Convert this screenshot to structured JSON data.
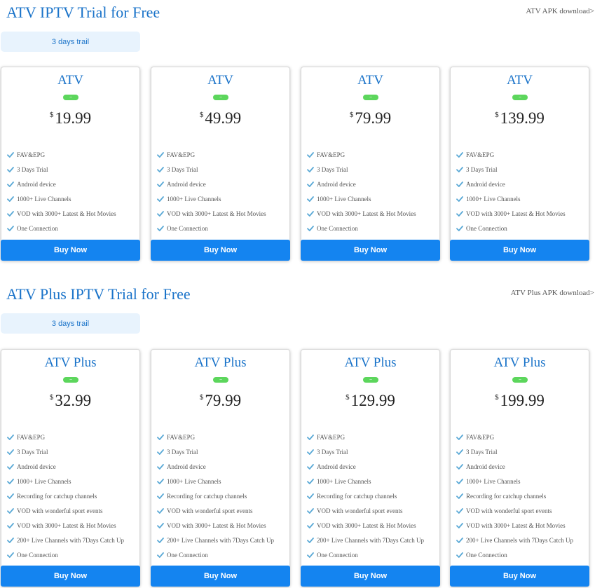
{
  "sections": [
    {
      "title": "ATV IPTV Trial for Free",
      "link": "ATV APK download>",
      "tab": "3 days trail",
      "cards": [
        {
          "name": "ATV",
          "currency": "$",
          "price": "19.99"
        },
        {
          "name": "ATV",
          "currency": "$",
          "price": "49.99"
        },
        {
          "name": "ATV",
          "currency": "$",
          "price": "79.99"
        },
        {
          "name": "ATV",
          "currency": "$",
          "price": "139.99"
        }
      ],
      "features": [
        "FAV&EPG",
        "3 Days Trial",
        "Android device",
        "1000+ Live Channels",
        "VOD with 3000+ Latest & Hot Movies",
        "One Connection"
      ],
      "buy_label": "Buy Now"
    },
    {
      "title": "ATV Plus IPTV Trial for Free",
      "link": "ATV Plus APK download>",
      "tab": "3 days trail",
      "cards": [
        {
          "name": "ATV Plus",
          "currency": "$",
          "price": "32.99"
        },
        {
          "name": "ATV Plus",
          "currency": "$",
          "price": "79.99"
        },
        {
          "name": "ATV Plus",
          "currency": "$",
          "price": "129.99"
        },
        {
          "name": "ATV Plus",
          "currency": "$",
          "price": "199.99"
        }
      ],
      "features": [
        "FAV&EPG",
        "3 Days Trial",
        "Android device",
        "1000+ Live Channels",
        "Recording for catchup channels",
        "VOD with wonderful sport events",
        "VOD with 3000+ Latest & Hot Movies",
        "200+ Live Channels with 7Days Catch Up",
        "One Connection"
      ],
      "buy_label": "Buy Now"
    }
  ],
  "badge_text": "–",
  "check_icon": "check-icon",
  "colors": {
    "accent": "#1a73c9",
    "buy": "#1484f0",
    "badge": "#5cd65c",
    "check": "#5aa9d6",
    "tab_bg": "#e8f3fd"
  }
}
